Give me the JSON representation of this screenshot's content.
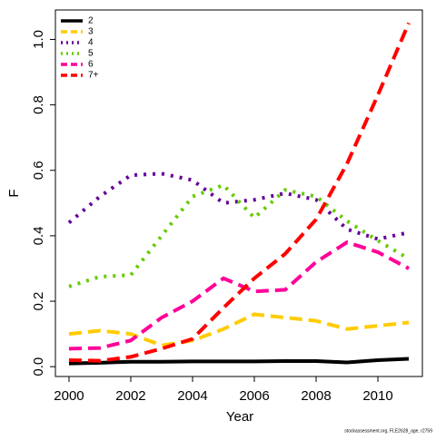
{
  "chart_data": {
    "type": "line",
    "xlabel": "Year",
    "ylabel": "F",
    "x": [
      2000,
      2001,
      2002,
      2003,
      2004,
      2005,
      2006,
      2007,
      2008,
      2009,
      2010,
      2011
    ],
    "series": [
      {
        "name": "2",
        "color": "#000000",
        "linestyle": "solid",
        "values": [
          0.01,
          0.012,
          0.015,
          0.015,
          0.016,
          0.016,
          0.016,
          0.017,
          0.017,
          0.013,
          0.02,
          0.024
        ]
      },
      {
        "name": "3",
        "color": "#ffcc00",
        "linestyle": "dashed",
        "values": [
          0.1,
          0.11,
          0.1,
          0.065,
          0.08,
          0.115,
          0.16,
          0.15,
          0.14,
          0.115,
          0.125,
          0.135
        ]
      },
      {
        "name": "4",
        "color": "#660099",
        "linestyle": "dotted",
        "values": [
          0.44,
          0.52,
          0.585,
          0.59,
          0.57,
          0.5,
          0.51,
          0.53,
          0.51,
          0.42,
          0.39,
          0.41
        ]
      },
      {
        "name": "5",
        "color": "#66cc00",
        "linestyle": "dotted",
        "values": [
          0.245,
          0.275,
          0.28,
          0.4,
          0.52,
          0.555,
          0.455,
          0.54,
          0.52,
          0.445,
          0.385,
          0.33
        ]
      },
      {
        "name": "6",
        "color": "#ff0099",
        "linestyle": "dashed",
        "values": [
          0.055,
          0.057,
          0.08,
          0.15,
          0.2,
          0.27,
          0.23,
          0.235,
          0.32,
          0.38,
          0.35,
          0.3
        ]
      },
      {
        "name": "7+",
        "color": "#ff0000",
        "linestyle": "dashed",
        "values": [
          0.02,
          0.018,
          0.03,
          0.055,
          0.085,
          0.18,
          0.27,
          0.345,
          0.45,
          0.62,
          0.83,
          1.05
        ]
      }
    ],
    "xlim": [
      1999.56,
      2011.44
    ],
    "ylim": [
      -0.03,
      1.09
    ],
    "xticks": [
      2000,
      2002,
      2004,
      2006,
      2008,
      2010
    ],
    "yticks": [
      {
        "value": 0,
        "label": "0.0"
      },
      0.2,
      0.4,
      0.6,
      0.8,
      {
        "value": 1,
        "label": "1.0"
      }
    ],
    "legend": "top-left",
    "footnote": "stockassessment.org, FLE2628_age, r2759"
  }
}
